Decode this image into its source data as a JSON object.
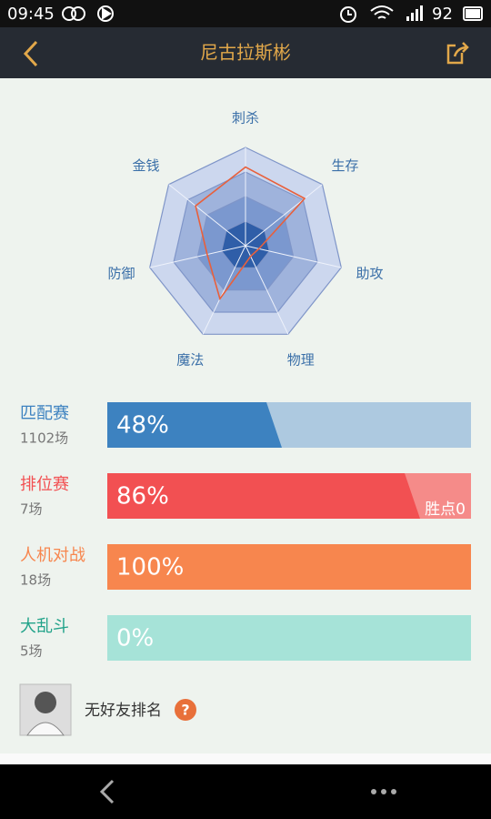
{
  "status_bar": {
    "time": "09:45",
    "battery": "92"
  },
  "header": {
    "title": "尼古拉斯彬"
  },
  "chart_data": {
    "type": "radar",
    "categories": [
      "刺杀",
      "生存",
      "助攻",
      "物理",
      "魔法",
      "防御",
      "金钱"
    ],
    "values": [
      80,
      77,
      14,
      12,
      60,
      40,
      65
    ],
    "color": "#e8603c",
    "ylim": [
      0,
      100
    ],
    "yticks": [
      25,
      50,
      75,
      100
    ],
    "grid": true
  },
  "modes": [
    {
      "name": "匹配赛",
      "count": "1102场",
      "value": 48,
      "value_label": "48%",
      "color": "#3d82c0",
      "track": "#adc9e0"
    },
    {
      "name": "排位赛",
      "count": "7场",
      "value": 86,
      "value_label": "86%",
      "color": "#f25052",
      "track": "#f58b89",
      "extra": "胜点0"
    },
    {
      "name": "人机对战",
      "count": "18场",
      "value": 100,
      "value_label": "100%",
      "color": "#f7864e",
      "track": "#f9b08a"
    },
    {
      "name": "大乱斗",
      "count": "5场",
      "value": 0,
      "value_label": "0%",
      "color": "#22a38a",
      "track": "#a6e3d8"
    }
  ],
  "friend_rank": {
    "text": "无好友排名",
    "help": "?"
  }
}
